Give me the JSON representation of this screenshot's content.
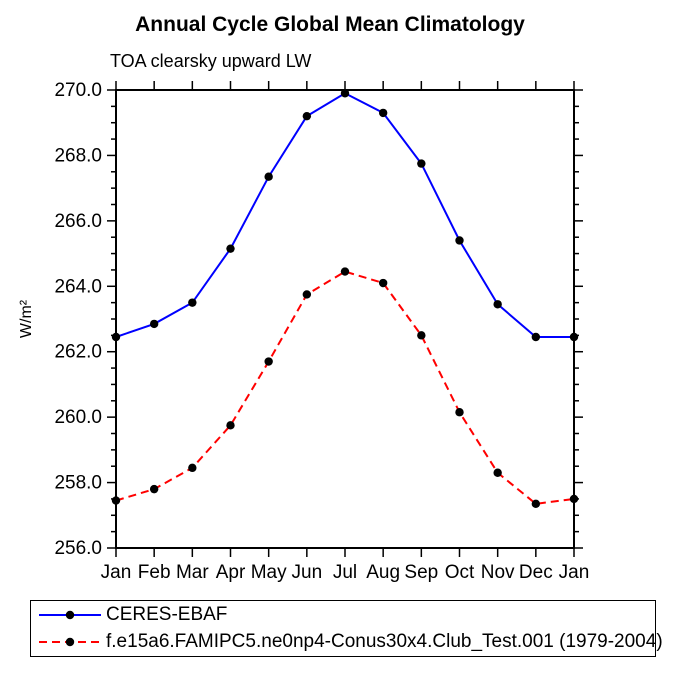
{
  "chart_data": {
    "type": "line",
    "title": "Annual Cycle Global Mean Climatology",
    "subtitle": "TOA clearsky upward LW",
    "ylabel": "W/m²",
    "xlabel": "",
    "categories": [
      "Jan",
      "Feb",
      "Mar",
      "Apr",
      "May",
      "Jun",
      "Jul",
      "Aug",
      "Sep",
      "Oct",
      "Nov",
      "Dec",
      "Jan"
    ],
    "ylim": [
      256.0,
      270.0
    ],
    "ytick_step": 2.0,
    "ytick_minor_step": 0.5,
    "grid": false,
    "legend_position": "bottom-left",
    "axis_color": "#000000",
    "marker_color": "#000000",
    "series": [
      {
        "name": "CERES-EBAF",
        "color": "#0000ff",
        "style": "solid",
        "marker": "circle",
        "values": [
          262.45,
          262.85,
          263.5,
          265.15,
          267.35,
          269.2,
          269.9,
          269.3,
          267.75,
          265.4,
          263.45,
          262.45,
          262.45
        ]
      },
      {
        "name": "f.e15a6.FAMIPC5.ne0np4-Conus30x4.Club_Test.001 (1979-2004)",
        "color": "#ff0000",
        "style": "dashed",
        "marker": "circle",
        "values": [
          257.45,
          257.8,
          258.45,
          259.75,
          261.7,
          263.75,
          264.45,
          264.1,
          262.5,
          260.15,
          258.3,
          257.35,
          257.5
        ]
      }
    ]
  }
}
